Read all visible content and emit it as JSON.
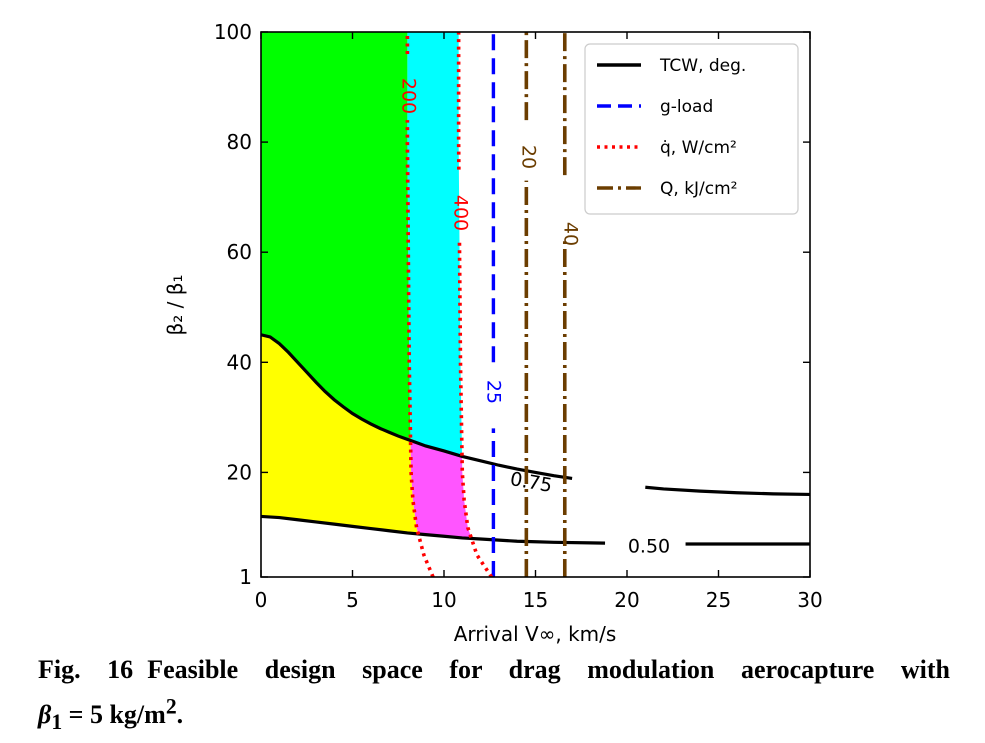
{
  "chart_data": {
    "type": "area",
    "xlabel": "Arrival V∞, km/s",
    "ylabel": "β₂ / β₁",
    "xlim": [
      0,
      30
    ],
    "ylim": [
      1,
      100
    ],
    "xticks": [
      0,
      5,
      10,
      15,
      20,
      25,
      30
    ],
    "yticks": [
      1,
      20,
      40,
      60,
      80,
      100
    ],
    "xtick_labels": [
      "0",
      "5",
      "10",
      "15",
      "20",
      "25",
      "30"
    ],
    "ytick_labels": [
      "1",
      "20",
      "40",
      "60",
      "80",
      "100"
    ],
    "grid": false,
    "legend_placement": "top-right",
    "legend": [
      {
        "label": "TCW, deg.",
        "style": "solid",
        "color": "#000000"
      },
      {
        "label": "g-load",
        "style": "dashed",
        "color": "#0000ff"
      },
      {
        "label": "q̇, W/cm²",
        "style": "dotted",
        "color": "#ff0000"
      },
      {
        "label": "Q, kJ/cm²",
        "style": "dashdot",
        "color": "#6b3d00"
      }
    ],
    "regions": [
      {
        "color": "#00ff00"
      },
      {
        "color": "#00ffff"
      },
      {
        "color": "#ffff00"
      },
      {
        "color": "#ff55ff"
      }
    ],
    "series": [
      {
        "kind": "TCW",
        "label": "0.75",
        "color": "#000000",
        "x": [
          0,
          0.5,
          1,
          1.5,
          2,
          2.5,
          3,
          3.5,
          4,
          4.5,
          5,
          5.5,
          6,
          6.5,
          7,
          7.5,
          8,
          8.5,
          9,
          10,
          11,
          12,
          13,
          14,
          15,
          16,
          17,
          18,
          20,
          22,
          24,
          26,
          28,
          30
        ],
        "y": [
          45,
          44.6,
          43.4,
          41.8,
          40,
          38.2,
          36.4,
          34.7,
          33.2,
          31.9,
          30.7,
          29.7,
          28.8,
          28.0,
          27.3,
          26.6,
          26.0,
          25.4,
          24.8,
          23.9,
          22.9,
          22.1,
          21.3,
          20.6,
          20.0,
          19.4,
          18.9,
          18.4,
          17.6,
          17.0,
          16.6,
          16.3,
          16.1,
          16.0
        ]
      },
      {
        "kind": "TCW",
        "label": "0.50",
        "color": "#000000",
        "x": [
          0,
          1,
          2,
          3,
          4,
          5,
          6,
          7,
          8,
          9,
          10,
          11,
          12,
          13,
          14,
          15,
          16,
          18,
          20,
          22,
          24,
          26,
          28,
          30
        ],
        "y": [
          12,
          11.8,
          11.4,
          11.0,
          10.6,
          10.2,
          9.8,
          9.4,
          9.0,
          8.7,
          8.4,
          8.1,
          7.9,
          7.7,
          7.5,
          7.4,
          7.3,
          7.2,
          7.1,
          7.0,
          7.0,
          7.0,
          7.0,
          7.0
        ]
      },
      {
        "kind": "g-load",
        "label": "25",
        "color": "#0000ff",
        "x": [
          12.7,
          12.7
        ],
        "y": [
          1,
          100
        ]
      },
      {
        "kind": "heat-rate",
        "label": "200",
        "color": "#ff0000",
        "x": [
          9.4,
          8.9,
          8.5,
          8.3,
          8.2,
          8.15,
          8.1,
          8.05,
          8.0,
          8.0
        ],
        "y": [
          1,
          5,
          10,
          15,
          20,
          30,
          40,
          60,
          80,
          100
        ]
      },
      {
        "kind": "heat-rate",
        "label": "400",
        "color": "#ff0000",
        "x": [
          12.6,
          11.8,
          11.3,
          11.1,
          11.0,
          10.95,
          10.9,
          10.85,
          10.8,
          10.8
        ],
        "y": [
          1,
          5,
          10,
          15,
          20,
          30,
          40,
          60,
          80,
          100
        ]
      },
      {
        "kind": "heat-load",
        "label": "20",
        "color": "#6b3d00",
        "x": [
          14.5,
          14.5
        ],
        "y": [
          1,
          100
        ]
      },
      {
        "kind": "heat-load",
        "label": "40",
        "color": "#6b3d00",
        "x": [
          16.6,
          16.6
        ],
        "y": [
          1,
          100
        ]
      }
    ]
  },
  "caption": {
    "fig_label": "Fig. 16",
    "text": "Feasible design space for drag modulation aerocapture with",
    "line2_symbol": "β",
    "line2_sub": "1",
    "line2_rest": " = 5 kg/m",
    "line2_sup": "2",
    "line2_end": "."
  }
}
